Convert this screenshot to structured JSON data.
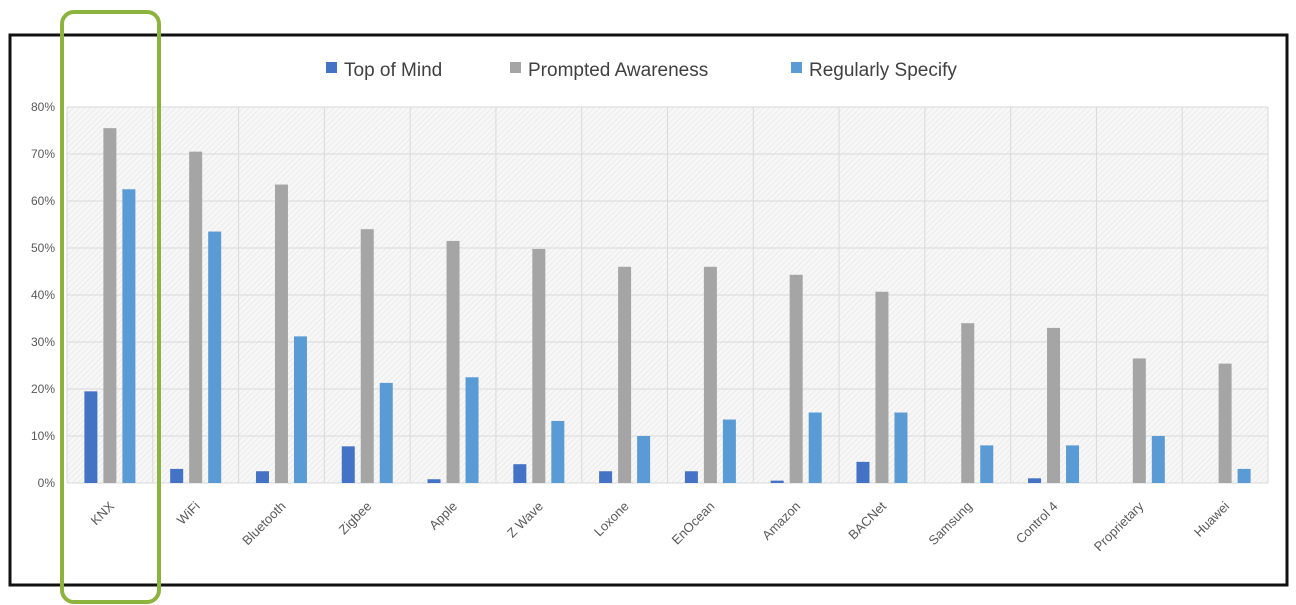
{
  "colors": {
    "top_of_mind": "#4472c4",
    "prompted_awareness": "#a5a5a5",
    "regularly_specify": "#5b9bd5",
    "highlight": "#8db33f",
    "frame": "#111111",
    "grid": "#d9d9d9"
  },
  "chart_data": {
    "type": "bar",
    "title": "",
    "xlabel": "",
    "ylabel": "",
    "ylim": [
      0,
      0.8
    ],
    "y_ticks": [
      "0%",
      "10%",
      "20%",
      "30%",
      "40%",
      "50%",
      "60%",
      "70%",
      "80%"
    ],
    "grid": true,
    "legend_position": "top",
    "highlighted_category": "KNX",
    "categories": [
      "KNX",
      "WiFi",
      "Bluetooth",
      "Zigbee",
      "Apple",
      "Z Wave",
      "Loxone",
      "EnOcean",
      "Amazon",
      "BACNet",
      "Samsung",
      "Control 4",
      "Proprietary",
      "Huawei"
    ],
    "series": [
      {
        "name": "Top of Mind",
        "color_key": "top_of_mind",
        "values": [
          0.195,
          0.03,
          0.025,
          0.078,
          0.008,
          0.04,
          0.025,
          0.025,
          0.005,
          0.045,
          0.0,
          0.01,
          0.0,
          0.0
        ]
      },
      {
        "name": "Prompted Awareness",
        "color_key": "prompted_awareness",
        "values": [
          0.755,
          0.705,
          0.635,
          0.54,
          0.515,
          0.498,
          0.46,
          0.46,
          0.443,
          0.407,
          0.34,
          0.33,
          0.265,
          0.254
        ]
      },
      {
        "name": "Regularly Specify",
        "color_key": "regularly_specify",
        "values": [
          0.625,
          0.535,
          0.312,
          0.213,
          0.225,
          0.132,
          0.1,
          0.135,
          0.15,
          0.15,
          0.08,
          0.08,
          0.1,
          0.03
        ]
      }
    ]
  }
}
